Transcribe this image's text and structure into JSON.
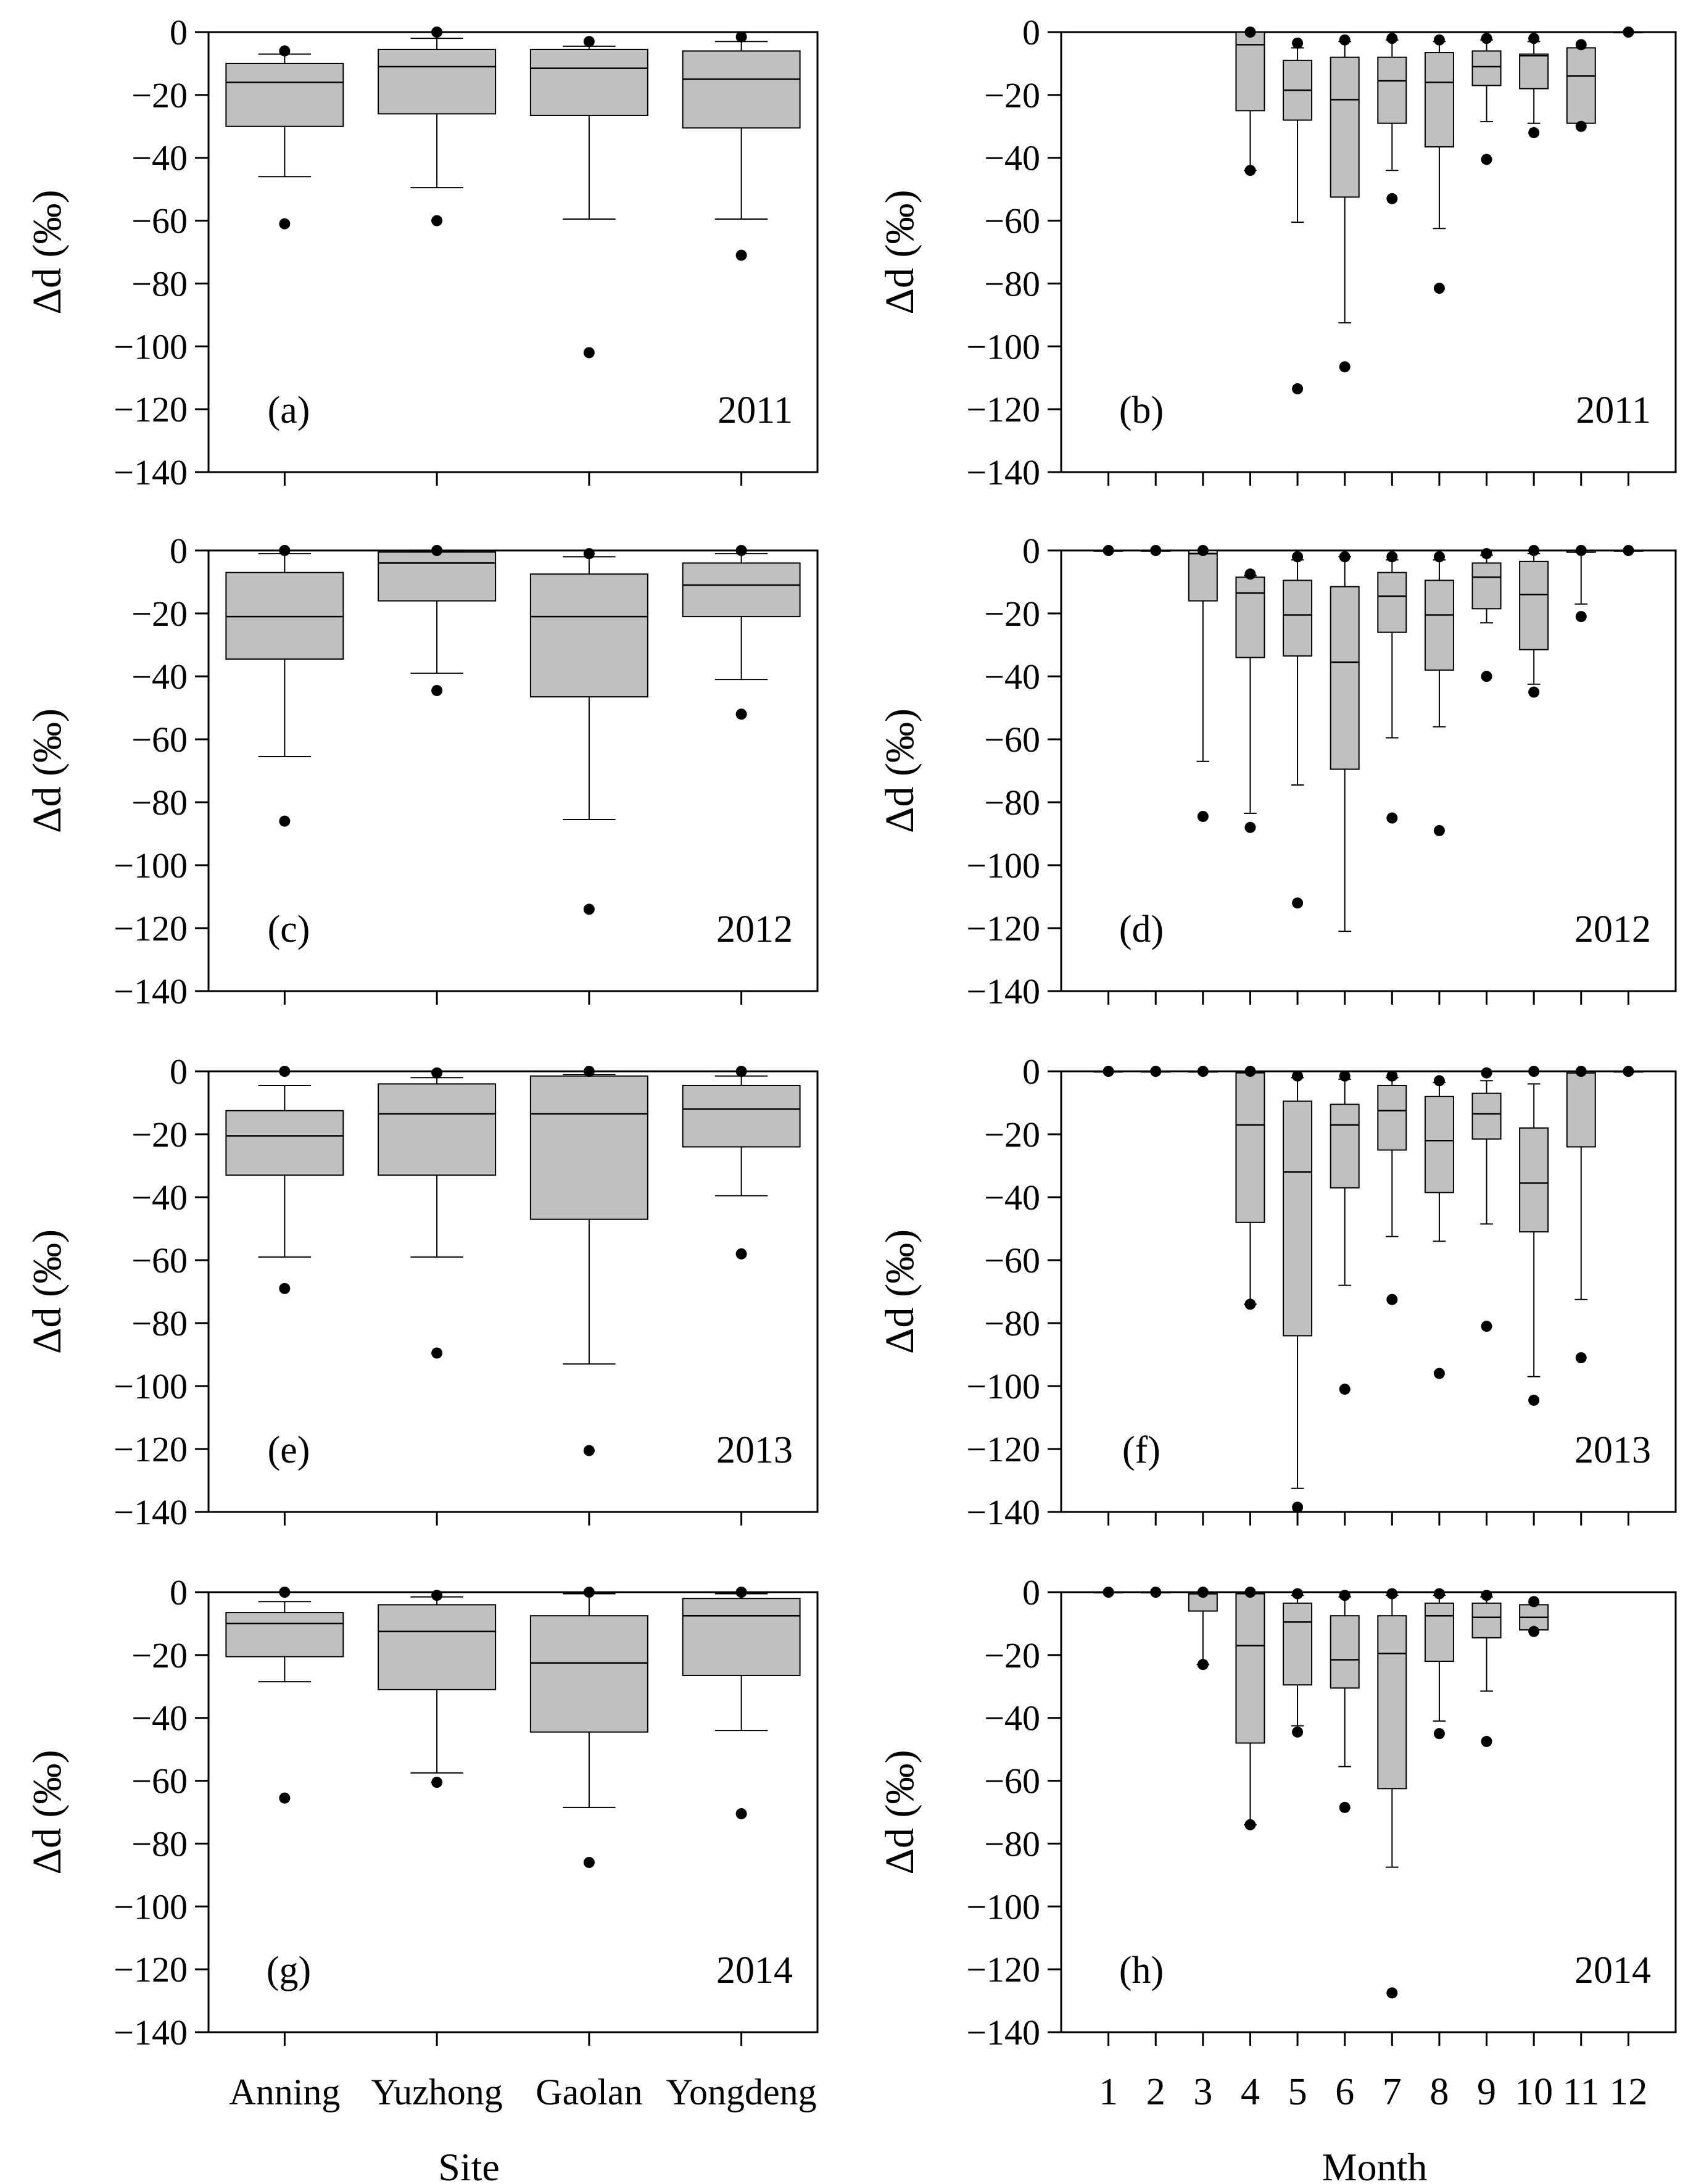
{
  "figure": {
    "x_titles": {
      "left": "Site",
      "right": "Month"
    },
    "y_label": "Δd (‰)",
    "y_ticks": [
      0,
      -20,
      -40,
      -60,
      -80,
      -100,
      -120,
      -140
    ],
    "colors": {
      "box_fill": "#c0c0c0",
      "stroke": "#000000",
      "outlier": "#000000"
    }
  },
  "chart_data": [
    {
      "type": "box",
      "panel": "(a)",
      "year": "2011",
      "xlabel": "Site",
      "ylabel": "Δd (‰)",
      "ylim": [
        -140,
        0
      ],
      "categories": [
        "Anning",
        "Yuzhong",
        "Gaolan",
        "Yongdeng"
      ],
      "boxes": [
        {
          "category": "Anning",
          "q1": -30,
          "median": -16,
          "q3": -10,
          "whisker_low": -46,
          "whisker_high": -7,
          "outliers": [
            -6,
            -61
          ]
        },
        {
          "category": "Yuzhong",
          "q1": -26,
          "median": -11,
          "q3": -5.5,
          "whisker_low": -49.5,
          "whisker_high": -2,
          "outliers": [
            0,
            -60
          ]
        },
        {
          "category": "Gaolan",
          "q1": -26.5,
          "median": -11.5,
          "q3": -5.5,
          "whisker_low": -59.5,
          "whisker_high": -4.5,
          "outliers": [
            -3,
            -102
          ]
        },
        {
          "category": "Yongdeng",
          "q1": -30.5,
          "median": -15,
          "q3": -6,
          "whisker_low": -59.5,
          "whisker_high": -3,
          "outliers": [
            -1.5,
            -71
          ]
        }
      ]
    },
    {
      "type": "box",
      "panel": "(b)",
      "year": "2011",
      "xlabel": "Month",
      "ylabel": "Δd (‰)",
      "ylim": [
        -140,
        0
      ],
      "categories": [
        "1",
        "2",
        "3",
        "4",
        "5",
        "6",
        "7",
        "8",
        "9",
        "10",
        "11",
        "12"
      ],
      "boxes": [
        {
          "category": "4",
          "q1": -25,
          "median": -4,
          "q3": 0,
          "whisker_low": -44,
          "whisker_high": 0,
          "outliers": [
            0,
            -44
          ]
        },
        {
          "category": "5",
          "q1": -28,
          "median": -18.5,
          "q3": -9,
          "whisker_low": -60.5,
          "whisker_high": -5,
          "outliers": [
            -3.5,
            -113.5
          ]
        },
        {
          "category": "6",
          "q1": -52.5,
          "median": -21.5,
          "q3": -8,
          "whisker_low": -92.5,
          "whisker_high": -3,
          "outliers": [
            -2.5,
            -106.5
          ]
        },
        {
          "category": "7",
          "q1": -29,
          "median": -15.5,
          "q3": -8,
          "whisker_low": -44,
          "whisker_high": -2.5,
          "outliers": [
            -2,
            -53
          ]
        },
        {
          "category": "8",
          "q1": -36.5,
          "median": -16,
          "q3": -6.5,
          "whisker_low": -62.5,
          "whisker_high": -3,
          "outliers": [
            -2.5,
            -81.5
          ]
        },
        {
          "category": "9",
          "q1": -17,
          "median": -11,
          "q3": -6,
          "whisker_low": -28.5,
          "whisker_high": -2.5,
          "outliers": [
            -2,
            -40.5
          ]
        },
        {
          "category": "10",
          "q1": -18,
          "median": -7.5,
          "q3": -7,
          "whisker_low": -29,
          "whisker_high": -3,
          "outliers": [
            -2,
            -32
          ]
        },
        {
          "category": "11",
          "q1": -29,
          "median": -14,
          "q3": -5,
          "whisker_low": -29,
          "whisker_high": -5,
          "outliers": [
            -4,
            -30
          ]
        },
        {
          "category": "12",
          "q1": 0,
          "median": 0,
          "q3": 0,
          "whisker_low": 0,
          "whisker_high": 0,
          "outliers": [
            0
          ]
        }
      ]
    },
    {
      "type": "box",
      "panel": "(c)",
      "year": "2012",
      "xlabel": "Site",
      "ylabel": "Δd (‰)",
      "ylim": [
        -140,
        0
      ],
      "categories": [
        "Anning",
        "Yuzhong",
        "Gaolan",
        "Yongdeng"
      ],
      "boxes": [
        {
          "category": "Anning",
          "q1": -34.5,
          "median": -21,
          "q3": -7,
          "whisker_low": -65.5,
          "whisker_high": -1,
          "outliers": [
            0,
            -86
          ]
        },
        {
          "category": "Yuzhong",
          "q1": -16,
          "median": -4,
          "q3": -0.5,
          "whisker_low": -39,
          "whisker_high": -0.5,
          "outliers": [
            0,
            -44.5
          ]
        },
        {
          "category": "Gaolan",
          "q1": -46.5,
          "median": -21,
          "q3": -7.5,
          "whisker_low": -85.5,
          "whisker_high": -2,
          "outliers": [
            -1,
            -114
          ]
        },
        {
          "category": "Yongdeng",
          "q1": -21,
          "median": -11,
          "q3": -4,
          "whisker_low": -41,
          "whisker_high": -1,
          "outliers": [
            0,
            -52
          ]
        }
      ]
    },
    {
      "type": "box",
      "panel": "(d)",
      "year": "2012",
      "xlabel": "Month",
      "ylabel": "Δd (‰)",
      "ylim": [
        -140,
        0
      ],
      "categories": [
        "1",
        "2",
        "3",
        "4",
        "5",
        "6",
        "7",
        "8",
        "9",
        "10",
        "11",
        "12"
      ],
      "boxes": [
        {
          "category": "1",
          "q1": 0,
          "median": 0,
          "q3": 0,
          "whisker_low": 0,
          "whisker_high": 0,
          "outliers": [
            0
          ]
        },
        {
          "category": "2",
          "q1": 0,
          "median": 0,
          "q3": 0,
          "whisker_low": 0,
          "whisker_high": 0,
          "outliers": [
            0
          ]
        },
        {
          "category": "3",
          "q1": -16,
          "median": -1,
          "q3": 0,
          "whisker_low": -67,
          "whisker_high": 0,
          "outliers": [
            0,
            -84.5
          ]
        },
        {
          "category": "4",
          "q1": -34,
          "median": -13.5,
          "q3": -8.5,
          "whisker_low": -83.5,
          "whisker_high": -8,
          "outliers": [
            -7.5,
            -88
          ]
        },
        {
          "category": "5",
          "q1": -33.5,
          "median": -20.5,
          "q3": -9.5,
          "whisker_low": -74.5,
          "whisker_high": -3,
          "outliers": [
            -2,
            -112
          ]
        },
        {
          "category": "6",
          "q1": -69.5,
          "median": -35.5,
          "q3": -11.5,
          "whisker_low": -121,
          "whisker_high": -2,
          "outliers": [
            -2
          ]
        },
        {
          "category": "7",
          "q1": -26,
          "median": -14.5,
          "q3": -7,
          "whisker_low": -59.5,
          "whisker_high": -3,
          "outliers": [
            -2,
            -85
          ]
        },
        {
          "category": "8",
          "q1": -38,
          "median": -20.5,
          "q3": -9.5,
          "whisker_low": -56,
          "whisker_high": -3,
          "outliers": [
            -2,
            -89
          ]
        },
        {
          "category": "9",
          "q1": -18.5,
          "median": -8.5,
          "q3": -4,
          "whisker_low": -23,
          "whisker_high": -1.5,
          "outliers": [
            -1,
            -40
          ]
        },
        {
          "category": "10",
          "q1": -31.5,
          "median": -14,
          "q3": -3.5,
          "whisker_low": -42.5,
          "whisker_high": -1,
          "outliers": [
            0,
            -45
          ]
        },
        {
          "category": "11",
          "q1": -0.5,
          "median": -0.5,
          "q3": 0,
          "whisker_low": -17,
          "whisker_high": 0,
          "outliers": [
            0,
            -21
          ]
        },
        {
          "category": "12",
          "q1": 0,
          "median": 0,
          "q3": 0,
          "whisker_low": 0,
          "whisker_high": 0,
          "outliers": [
            0
          ]
        }
      ]
    },
    {
      "type": "box",
      "panel": "(e)",
      "year": "2013",
      "xlabel": "Site",
      "ylabel": "Δd (‰)",
      "ylim": [
        -140,
        0
      ],
      "categories": [
        "Anning",
        "Yuzhong",
        "Gaolan",
        "Yongdeng"
      ],
      "boxes": [
        {
          "category": "Anning",
          "q1": -33,
          "median": -20.5,
          "q3": -12.5,
          "whisker_low": -59,
          "whisker_high": -4.5,
          "outliers": [
            0,
            -69
          ]
        },
        {
          "category": "Yuzhong",
          "q1": -33,
          "median": -13.5,
          "q3": -4,
          "whisker_low": -59,
          "whisker_high": -2,
          "outliers": [
            -0.5,
            -89.5
          ]
        },
        {
          "category": "Gaolan",
          "q1": -47,
          "median": -13.5,
          "q3": -1.5,
          "whisker_low": -93,
          "whisker_high": -1,
          "outliers": [
            0,
            -120.5
          ]
        },
        {
          "category": "Yongdeng",
          "q1": -24,
          "median": -12,
          "q3": -4.5,
          "whisker_low": -39.5,
          "whisker_high": -1.5,
          "outliers": [
            0,
            -58
          ]
        }
      ]
    },
    {
      "type": "box",
      "panel": "(f)",
      "year": "2013",
      "xlabel": "Month",
      "ylabel": "Δd (‰)",
      "ylim": [
        -140,
        0
      ],
      "categories": [
        "1",
        "2",
        "3",
        "4",
        "5",
        "6",
        "7",
        "8",
        "9",
        "10",
        "11",
        "12"
      ],
      "boxes": [
        {
          "category": "1",
          "q1": 0,
          "median": 0,
          "q3": 0,
          "whisker_low": 0,
          "whisker_high": 0,
          "outliers": [
            0
          ]
        },
        {
          "category": "2",
          "q1": 0,
          "median": 0,
          "q3": 0,
          "whisker_low": 0,
          "whisker_high": 0,
          "outliers": [
            0
          ]
        },
        {
          "category": "3",
          "q1": 0,
          "median": 0,
          "q3": 0,
          "whisker_low": 0,
          "whisker_high": 0,
          "outliers": [
            0
          ]
        },
        {
          "category": "4",
          "q1": -48,
          "median": -17,
          "q3": -0.5,
          "whisker_low": -74,
          "whisker_high": 0,
          "outliers": [
            0,
            -74
          ]
        },
        {
          "category": "5",
          "q1": -84,
          "median": -32,
          "q3": -9.5,
          "whisker_low": -132.5,
          "whisker_high": -2,
          "outliers": [
            -1.5,
            -138.5
          ]
        },
        {
          "category": "6",
          "q1": -37,
          "median": -17,
          "q3": -10.5,
          "whisker_low": -68,
          "whisker_high": -2.5,
          "outliers": [
            -1.5,
            -101
          ]
        },
        {
          "category": "7",
          "q1": -25,
          "median": -12.5,
          "q3": -4.5,
          "whisker_low": -52.5,
          "whisker_high": -2,
          "outliers": [
            -1.5,
            -72.5
          ]
        },
        {
          "category": "8",
          "q1": -38.5,
          "median": -22,
          "q3": -8,
          "whisker_low": -54,
          "whisker_high": -3.5,
          "outliers": [
            -3,
            -96
          ]
        },
        {
          "category": "9",
          "q1": -21.5,
          "median": -13.5,
          "q3": -7,
          "whisker_low": -48.5,
          "whisker_high": -3,
          "outliers": [
            -0.5,
            -81
          ]
        },
        {
          "category": "10",
          "q1": -51,
          "median": -35.5,
          "q3": -18,
          "whisker_low": -97,
          "whisker_high": -4,
          "outliers": [
            0,
            -104.5
          ]
        },
        {
          "category": "11",
          "q1": -24,
          "median": -0.5,
          "q3": 0,
          "whisker_low": -72.5,
          "whisker_high": 0,
          "outliers": [
            0,
            -91
          ]
        },
        {
          "category": "12",
          "q1": 0,
          "median": 0,
          "q3": 0,
          "whisker_low": 0,
          "whisker_high": 0,
          "outliers": [
            0
          ]
        }
      ]
    },
    {
      "type": "box",
      "panel": "(g)",
      "year": "2014",
      "xlabel": "Site",
      "ylabel": "Δd (‰)",
      "ylim": [
        -140,
        0
      ],
      "categories": [
        "Anning",
        "Yuzhong",
        "Gaolan",
        "Yongdeng"
      ],
      "boxes": [
        {
          "category": "Anning",
          "q1": -20.5,
          "median": -10,
          "q3": -6.5,
          "whisker_low": -28.5,
          "whisker_high": -3,
          "outliers": [
            0,
            -65.5
          ]
        },
        {
          "category": "Yuzhong",
          "q1": -31,
          "median": -12.5,
          "q3": -4,
          "whisker_low": -57.5,
          "whisker_high": -1.5,
          "outliers": [
            -1,
            -60.5
          ]
        },
        {
          "category": "Gaolan",
          "q1": -44.5,
          "median": -22.5,
          "q3": -7.5,
          "whisker_low": -68.5,
          "whisker_high": -0.5,
          "outliers": [
            0,
            -86
          ]
        },
        {
          "category": "Yongdeng",
          "q1": -26.5,
          "median": -7.5,
          "q3": -2,
          "whisker_low": -44,
          "whisker_high": -0.5,
          "outliers": [
            0,
            -70.5
          ]
        }
      ]
    },
    {
      "type": "box",
      "panel": "(h)",
      "year": "2014",
      "xlabel": "Month",
      "ylabel": "Δd (‰)",
      "ylim": [
        -140,
        0
      ],
      "categories": [
        "1",
        "2",
        "3",
        "4",
        "5",
        "6",
        "7",
        "8",
        "9",
        "10",
        "11",
        "12"
      ],
      "boxes": [
        {
          "category": "1",
          "q1": 0,
          "median": 0,
          "q3": 0,
          "whisker_low": 0,
          "whisker_high": 0,
          "outliers": [
            0
          ]
        },
        {
          "category": "2",
          "q1": 0,
          "median": 0,
          "q3": 0,
          "whisker_low": 0,
          "whisker_high": 0,
          "outliers": [
            0
          ]
        },
        {
          "category": "3",
          "q1": -6,
          "median": -0.5,
          "q3": 0,
          "whisker_low": -23,
          "whisker_high": 0,
          "outliers": [
            0,
            -23
          ]
        },
        {
          "category": "4",
          "q1": -48,
          "median": -17,
          "q3": -0.5,
          "whisker_low": -74,
          "whisker_high": 0,
          "outliers": [
            0,
            -74
          ]
        },
        {
          "category": "5",
          "q1": -29.5,
          "median": -9.5,
          "q3": -3.5,
          "whisker_low": -42.5,
          "whisker_high": -1,
          "outliers": [
            -0.5,
            -44.5
          ]
        },
        {
          "category": "6",
          "q1": -30.5,
          "median": -21.5,
          "q3": -7.5,
          "whisker_low": -55.5,
          "whisker_high": -1.5,
          "outliers": [
            -1,
            -68.5
          ]
        },
        {
          "category": "7",
          "q1": -62.5,
          "median": -19.5,
          "q3": -7.5,
          "whisker_low": -87.5,
          "whisker_high": -1,
          "outliers": [
            -0.5,
            -127.5
          ]
        },
        {
          "category": "8",
          "q1": -22,
          "median": -7.5,
          "q3": -3.5,
          "whisker_low": -41,
          "whisker_high": -1,
          "outliers": [
            -0.5,
            -45
          ]
        },
        {
          "category": "9",
          "q1": -14.5,
          "median": -8,
          "q3": -3.5,
          "whisker_low": -31.5,
          "whisker_high": -1.5,
          "outliers": [
            -1,
            -47.5
          ]
        },
        {
          "category": "10",
          "q1": -12,
          "median": -8,
          "q3": -4,
          "whisker_low": -12,
          "whisker_high": -4,
          "outliers": [
            -3,
            -12.5
          ]
        }
      ]
    }
  ]
}
